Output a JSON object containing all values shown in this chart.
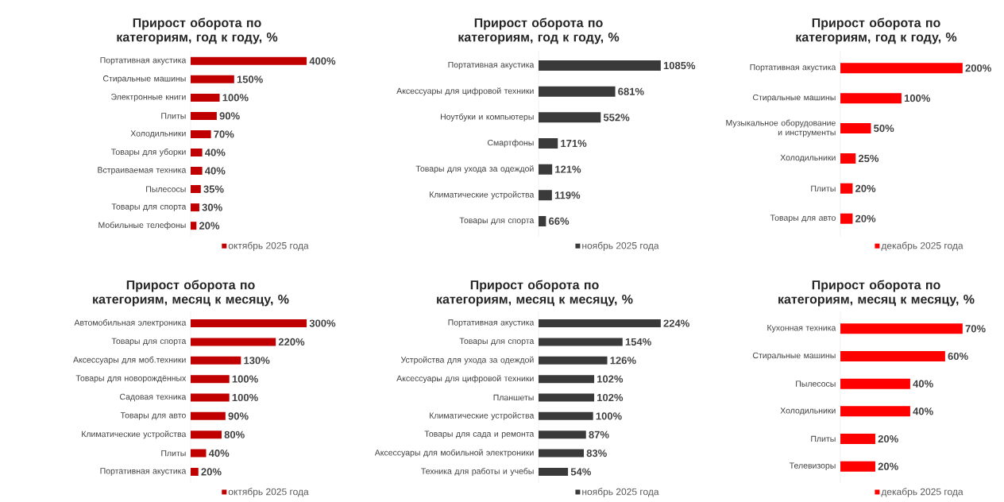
{
  "chart_data": [
    {
      "type": "bar",
      "orientation": "horizontal",
      "title": "Прирост оборота по категориям, год к году, %",
      "legend": "bottom",
      "categories": [
        "Портативная акустика",
        "Стиральные машины",
        "Электронные книги",
        "Плиты",
        "Холодильники",
        "Товары для уборки",
        "Встраиваемая техника",
        "Пылесосы",
        "Товары для спорта",
        "Мобильные телефоны"
      ],
      "series": [
        {
          "name": "октябрь 2025 года",
          "color": "#c00000",
          "values": [
            400,
            150,
            100,
            90,
            70,
            40,
            40,
            35,
            30,
            20
          ],
          "value_labels": [
            "400%",
            "150%",
            "100%",
            "90%",
            "70%",
            "40%",
            "40%",
            "35%",
            "30%",
            "20%"
          ]
        }
      ]
    },
    {
      "type": "bar",
      "orientation": "horizontal",
      "title": "Прирост оборота по категориям, год к году, %",
      "legend": "bottom",
      "categories": [
        "Портативная акустика",
        "Аксессуары для цифровой техники",
        "Ноутбуки и компьютеры",
        "Смартфоны",
        "Товары для ухода за одеждой",
        "Климатические устройства",
        "Товары для спорта"
      ],
      "series": [
        {
          "name": "ноябрь 2025 года",
          "color": "#3a3a3a",
          "values": [
            1085,
            681,
            552,
            171,
            121,
            119,
            66
          ],
          "value_labels": [
            "1085%",
            "681%",
            "552%",
            "171%",
            "121%",
            "119%",
            "66%"
          ]
        }
      ]
    },
    {
      "type": "bar",
      "orientation": "horizontal",
      "title": "Прирост оборота по категориям, год к году, %",
      "legend": "bottom",
      "categories": [
        "Портативная акустика",
        "Стиральные машины",
        "Музыкальное оборудование и инструменты",
        "Холодильники",
        "Плиты",
        "Товары для авто"
      ],
      "series": [
        {
          "name": "декабрь 2025 года",
          "color": "#ff0000",
          "values": [
            200,
            100,
            50,
            25,
            20,
            20
          ],
          "value_labels": [
            "200%",
            "100%",
            "50%",
            "25%",
            "20%",
            "20%"
          ]
        }
      ]
    },
    {
      "type": "bar",
      "orientation": "horizontal",
      "title": "Прирост оборота по категориям, месяц к месяцу, %",
      "legend": "bottom",
      "categories": [
        "Автомобильная электроника",
        "Товары для спорта",
        "Аксессуары для моб.техники",
        "Товары для новорождённых",
        "Садовая техника",
        "Товары для авто",
        "Климатические устройства",
        "Плиты",
        "Портативная акустика"
      ],
      "series": [
        {
          "name": "октябрь 2025 года",
          "color": "#c00000",
          "values": [
            300,
            220,
            130,
            100,
            100,
            90,
            80,
            40,
            20
          ],
          "value_labels": [
            "300%",
            "220%",
            "130%",
            "100%",
            "100%",
            "90%",
            "80%",
            "40%",
            "20%"
          ]
        }
      ]
    },
    {
      "type": "bar",
      "orientation": "horizontal",
      "title": "Прирост оборота по категориям, месяц к месяцу, %",
      "legend": "bottom",
      "categories": [
        "Портативная акустика",
        "Товары для спорта",
        "Устройства для ухода за одеждой",
        "Аксессуары для цифровой техники",
        "Планшеты",
        "Климатические устройства",
        "Товары для сада и ремонта",
        "Аксессуары для мобильной электроники",
        "Техника для работы и учебы"
      ],
      "series": [
        {
          "name": "ноябрь 2025 года",
          "color": "#3a3a3a",
          "values": [
            224,
            154,
            126,
            102,
            102,
            100,
            87,
            83,
            54
          ],
          "value_labels": [
            "224%",
            "154%",
            "126%",
            "102%",
            "102%",
            "100%",
            "87%",
            "83%",
            "54%"
          ]
        }
      ]
    },
    {
      "type": "bar",
      "orientation": "horizontal",
      "title": "Прирост оборота по категориям, месяц к месяцу, %",
      "legend": "bottom",
      "categories": [
        "Кухонная техника",
        "Стиральные машины",
        "Пылесосы",
        "Холодильники",
        "Плиты",
        "Телевизоры"
      ],
      "series": [
        {
          "name": "декабрь 2025 года",
          "color": "#ff0000",
          "values": [
            70,
            60,
            40,
            40,
            20,
            20
          ],
          "value_labels": [
            "70%",
            "60%",
            "40%",
            "40%",
            "20%",
            "20%"
          ]
        }
      ]
    }
  ]
}
